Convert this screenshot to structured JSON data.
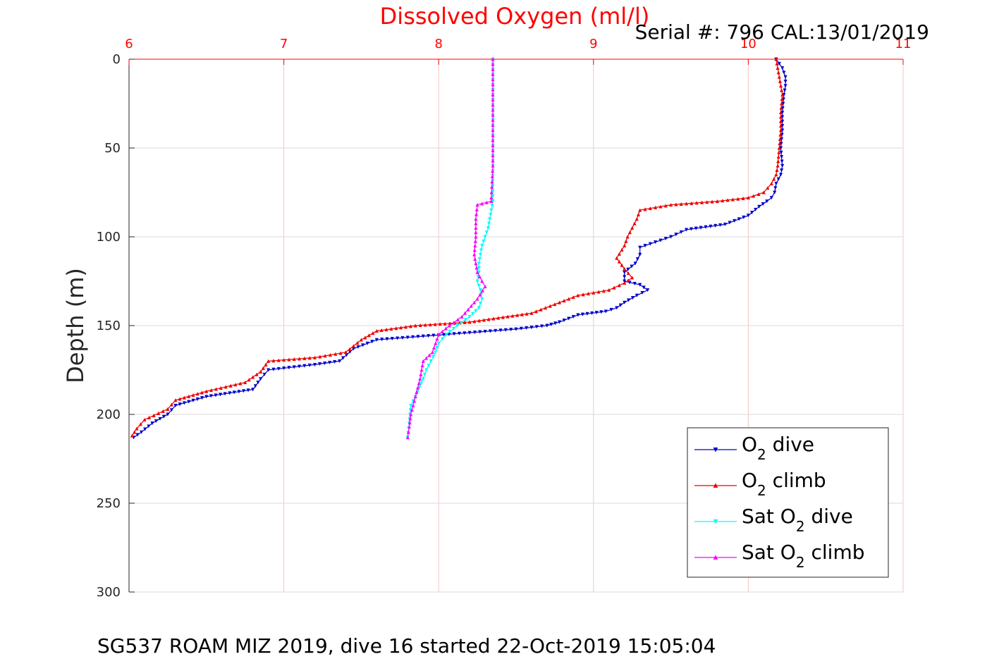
{
  "chart_data": {
    "type": "line",
    "title": "Dissolved Oxygen (ml/l)",
    "annotation": "Serial #: 796  CAL:13/01/2019",
    "footer": "SG537 ROAM MIZ 2019, dive 16 started 22-Oct-2019 15:05:04",
    "ylabel": "Depth (m)",
    "xlim": [
      6,
      11
    ],
    "ylim": [
      0,
      300
    ],
    "y_reversed": true,
    "x_axis_location": "top",
    "x_ticks": [
      "6",
      "7",
      "8",
      "9",
      "10",
      "11"
    ],
    "y_ticks": [
      "0",
      "50",
      "100",
      "150",
      "200",
      "250",
      "300"
    ],
    "grid": true,
    "legend_position": "bottom-right",
    "colors": {
      "axis": "#ff0000",
      "o2_dive": "#0000cc",
      "o2_climb": "#ee0000",
      "sat_dive": "#00ffff",
      "sat_climb": "#ff00ff"
    },
    "legend": [
      {
        "prefix": "O",
        "sub": "2",
        "suffix": " dive",
        "color": "#0000cc",
        "marker": "down"
      },
      {
        "prefix": "O",
        "sub": "2",
        "suffix": " climb",
        "color": "#ee0000",
        "marker": "up"
      },
      {
        "prefix": "Sat O",
        "sub": "2",
        "suffix": " dive",
        "color": "#00ffff",
        "marker": "down"
      },
      {
        "prefix": "Sat O",
        "sub": "2",
        "suffix": " climb",
        "color": "#ff00ff",
        "marker": "up"
      }
    ],
    "series": [
      {
        "name": "O2 dive",
        "color": "#0000cc",
        "marker": "down",
        "x": [
          10.18,
          10.22,
          10.24,
          10.24,
          10.23,
          10.22,
          10.22,
          10.21,
          10.22,
          10.21,
          10.18,
          10.17,
          10.15,
          10.12,
          10.07,
          10.0,
          9.85,
          9.6,
          9.5,
          9.4,
          9.3,
          9.3,
          9.27,
          9.2,
          9.2,
          9.3,
          9.35,
          9.28,
          9.2,
          9.15,
          9.08,
          8.9,
          8.78,
          8.7,
          8.5,
          8.2,
          7.9,
          7.6,
          7.45,
          7.36,
          7.2,
          6.9,
          6.85,
          6.8,
          6.5,
          6.3,
          6.25,
          6.15,
          6.08,
          6.03
        ],
        "y": [
          0,
          5,
          10,
          15,
          20,
          30,
          40,
          50,
          60,
          65,
          70,
          75,
          78,
          80,
          83,
          88,
          93,
          96,
          100,
          103,
          106,
          110,
          115,
          120,
          125,
          127,
          130,
          133,
          137,
          140,
          142,
          144,
          148,
          150,
          152,
          154,
          156,
          158,
          163,
          170,
          172,
          175,
          180,
          186,
          190,
          195,
          200,
          205,
          210,
          213
        ]
      },
      {
        "name": "O2 climb",
        "color": "#ee0000",
        "marker": "up",
        "x": [
          10.18,
          10.2,
          10.22,
          10.21,
          10.21,
          10.2,
          10.19,
          10.18,
          10.15,
          10.1,
          10.0,
          9.8,
          9.5,
          9.3,
          9.28,
          9.25,
          9.22,
          9.2,
          9.15,
          9.2,
          9.25,
          9.2,
          9.1,
          8.9,
          8.75,
          8.6,
          8.2,
          7.85,
          7.6,
          7.5,
          7.4,
          7.2,
          6.9,
          6.85,
          6.75,
          6.5,
          6.3,
          6.25,
          6.1,
          6.05,
          6.02
        ],
        "y": [
          0,
          10,
          20,
          30,
          40,
          50,
          60,
          65,
          70,
          75,
          78,
          80,
          82,
          85,
          90,
          95,
          100,
          105,
          112,
          118,
          123,
          126,
          130,
          133,
          138,
          143,
          148,
          150,
          153,
          158,
          165,
          168,
          170,
          176,
          182,
          187,
          192,
          197,
          203,
          208,
          212
        ]
      },
      {
        "name": "Sat O2 dive",
        "color": "#00ffff",
        "marker": "down",
        "x": [
          8.35,
          8.35,
          8.35,
          8.35,
          8.35,
          8.34,
          8.33,
          8.32,
          8.3,
          8.28,
          8.27,
          8.26,
          8.26,
          8.25,
          8.27,
          8.28,
          8.26,
          8.2,
          8.12,
          8.05,
          8.0,
          7.98,
          7.95,
          7.92,
          7.9,
          7.85,
          7.82,
          7.81,
          7.8
        ],
        "y": [
          0,
          20,
          40,
          60,
          80,
          85,
          90,
          95,
          100,
          105,
          110,
          115,
          120,
          125,
          130,
          135,
          140,
          145,
          150,
          155,
          160,
          165,
          170,
          175,
          180,
          190,
          195,
          205,
          213
        ]
      },
      {
        "name": "Sat O2 climb",
        "color": "#ff00ff",
        "marker": "up",
        "x": [
          8.35,
          8.35,
          8.35,
          8.35,
          8.34,
          8.34,
          8.25,
          8.24,
          8.24,
          8.23,
          8.24,
          8.25,
          8.28,
          8.3,
          8.25,
          8.15,
          8.07,
          8.0,
          7.98,
          7.96,
          7.9,
          7.88,
          7.85,
          7.82,
          7.81,
          7.8
        ],
        "y": [
          0,
          20,
          40,
          60,
          78,
          80,
          82,
          90,
          100,
          110,
          115,
          120,
          125,
          128,
          135,
          145,
          150,
          155,
          160,
          165,
          170,
          180,
          190,
          200,
          207,
          213
        ]
      }
    ]
  }
}
